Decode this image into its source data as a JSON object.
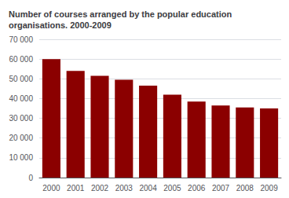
{
  "chart_data": {
    "type": "bar",
    "title": "Number of courses arranged by the popular education\norganisations. 2000-2009",
    "categories": [
      "2000",
      "2001",
      "2002",
      "2003",
      "2004",
      "2005",
      "2006",
      "2007",
      "2008",
      "2009"
    ],
    "values": [
      60000,
      54000,
      51500,
      49500,
      46500,
      42000,
      38500,
      36500,
      35500,
      35000
    ],
    "color": "#8B0000",
    "ylim": [
      0,
      70000
    ],
    "yticks": [
      0,
      {
        "value": 10000,
        "label": "10 000"
      },
      {
        "value": 20000,
        "label": "20 000"
      },
      {
        "value": 30000,
        "label": "30 000"
      },
      {
        "value": 40000,
        "label": "40 000"
      },
      {
        "value": 50000,
        "label": "50 000"
      },
      {
        "value": 60000,
        "label": "60 000"
      },
      {
        "value": 70000,
        "label": "70 000"
      }
    ],
    "grid": true
  }
}
